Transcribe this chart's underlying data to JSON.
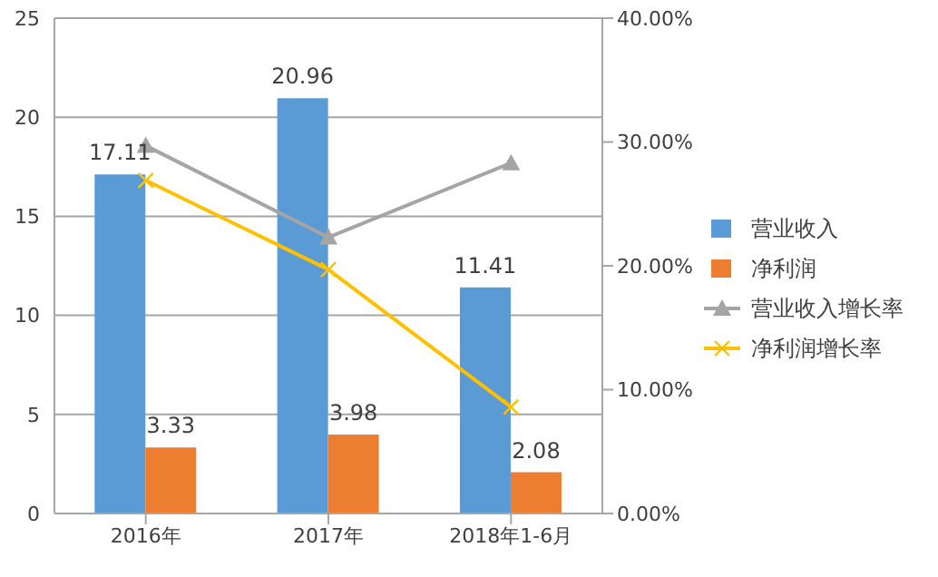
{
  "chart_data": {
    "type": "bar",
    "categories": [
      "2016年",
      "2017年",
      "2018年1-6月"
    ],
    "series": [
      {
        "name": "营业收入",
        "color": "#5b9bd5",
        "values": [
          17.11,
          20.96,
          11.41
        ],
        "value_labels": [
          "17.11",
          "20.96",
          "11.41"
        ]
      },
      {
        "name": "净利润",
        "color": "#ed7d31",
        "values": [
          3.33,
          3.98,
          2.08
        ],
        "value_labels": [
          "3.33",
          "3.98",
          "2.08"
        ]
      },
      {
        "name": "营业收入增长率",
        "type": "line",
        "axis": "y2",
        "color": "#a5a5a5",
        "marker": "triangle",
        "values": [
          29.7,
          22.3,
          28.3
        ]
      },
      {
        "name": "净利润增长率",
        "type": "line",
        "axis": "y2",
        "color": "#ffc000",
        "marker": "cross",
        "values": [
          26.9,
          19.7,
          8.6
        ]
      }
    ],
    "ylim": [
      0,
      25
    ],
    "yticks": [
      0,
      5,
      10,
      15,
      20,
      25
    ],
    "y2lim": [
      0,
      40
    ],
    "y2ticks": [
      {
        "value": 0,
        "label": "0.00%"
      },
      {
        "value": 10,
        "label": "10.00%"
      },
      {
        "value": 20,
        "label": "20.00%"
      },
      {
        "value": 30,
        "label": "30.00%"
      },
      {
        "value": 40,
        "label": "40.00%"
      }
    ],
    "grid": "y",
    "legend": "right"
  }
}
